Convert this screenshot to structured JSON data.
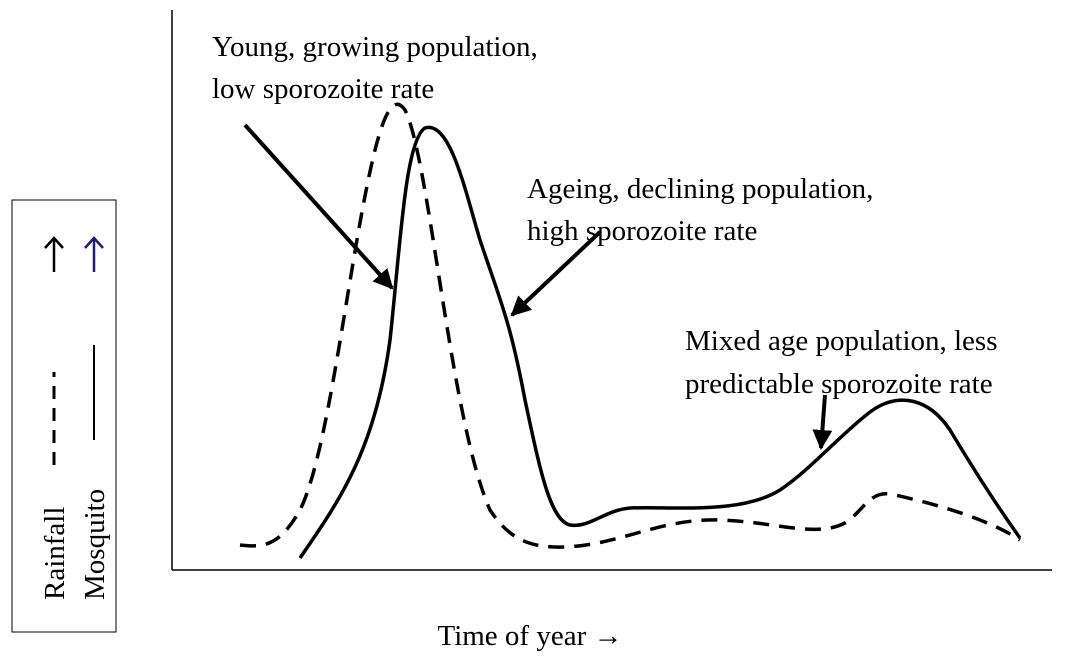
{
  "annotations": [
    {
      "lines": [
        "Young, growing population,",
        "low sporozoite rate"
      ]
    },
    {
      "lines": [
        "Ageing, declining population,",
        "high sporozoite rate"
      ]
    },
    {
      "lines": [
        "Mixed age population, less",
        "predictable sporozoite rate"
      ]
    }
  ],
  "x_axis_label": "Time of year →",
  "legend": {
    "items": [
      {
        "label": "Rainfall"
      },
      {
        "label": "Mosquito"
      }
    ]
  }
}
